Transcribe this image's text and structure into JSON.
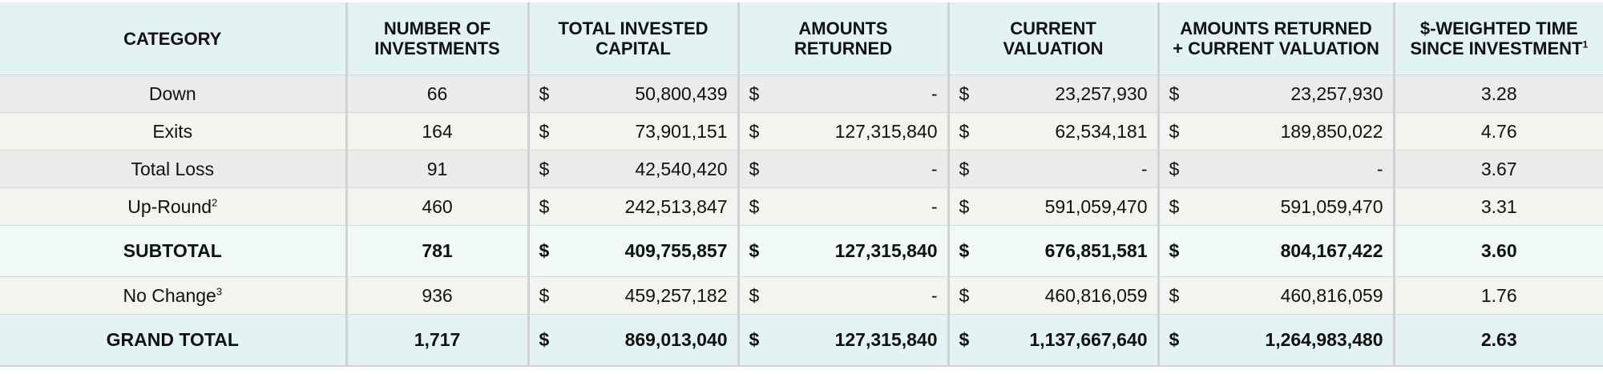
{
  "headers": {
    "category": "CATEGORY",
    "num_investments": [
      "NUMBER OF",
      "INVESTMENTS"
    ],
    "total_invested": [
      "TOTAL INVESTED",
      "CAPITAL"
    ],
    "amounts_returned": [
      "AMOUNTS",
      "RETURNED"
    ],
    "current_valuation": [
      "CURRENT",
      "VALUATION"
    ],
    "returned_plus_valuation": [
      "AMOUNTS RETURNED",
      "+ CURRENT VALUATION"
    ],
    "weighted_time": [
      "$-WEIGHTED TIME",
      "SINCE INVESTMENT"
    ],
    "weighted_time_note": "1"
  },
  "currency_symbol": "$",
  "rows": [
    {
      "category": "Down",
      "note": "",
      "count": "66",
      "invested": "50,800,439",
      "returned": "-",
      "valuation": "23,257,930",
      "total": "23,257,930",
      "time": "3.28"
    },
    {
      "category": "Exits",
      "note": "",
      "count": "164",
      "invested": "73,901,151",
      "returned": "127,315,840",
      "valuation": "62,534,181",
      "total": "189,850,022",
      "time": "4.76"
    },
    {
      "category": "Total Loss",
      "note": "",
      "count": "91",
      "invested": "42,540,420",
      "returned": "-",
      "valuation": "-",
      "total": "-",
      "time": "3.67"
    },
    {
      "category": "Up-Round",
      "note": "2",
      "count": "460",
      "invested": "242,513,847",
      "returned": "-",
      "valuation": "591,059,470",
      "total": "591,059,470",
      "time": "3.31"
    },
    {
      "category": "SUBTOTAL",
      "note": "",
      "count": "781",
      "invested": "409,755,857",
      "returned": "127,315,840",
      "valuation": "676,851,581",
      "total": "804,167,422",
      "time": "3.60"
    },
    {
      "category": "No Change",
      "note": "3",
      "count": "936",
      "invested": "459,257,182",
      "returned": "-",
      "valuation": "460,816,059",
      "total": "460,816,059",
      "time": "1.76"
    },
    {
      "category": "GRAND TOTAL",
      "note": "",
      "count": "1,717",
      "invested": "869,013,040",
      "returned": "127,315,840",
      "valuation": "1,137,667,640",
      "total": "1,264,983,480",
      "time": "2.63"
    }
  ]
}
